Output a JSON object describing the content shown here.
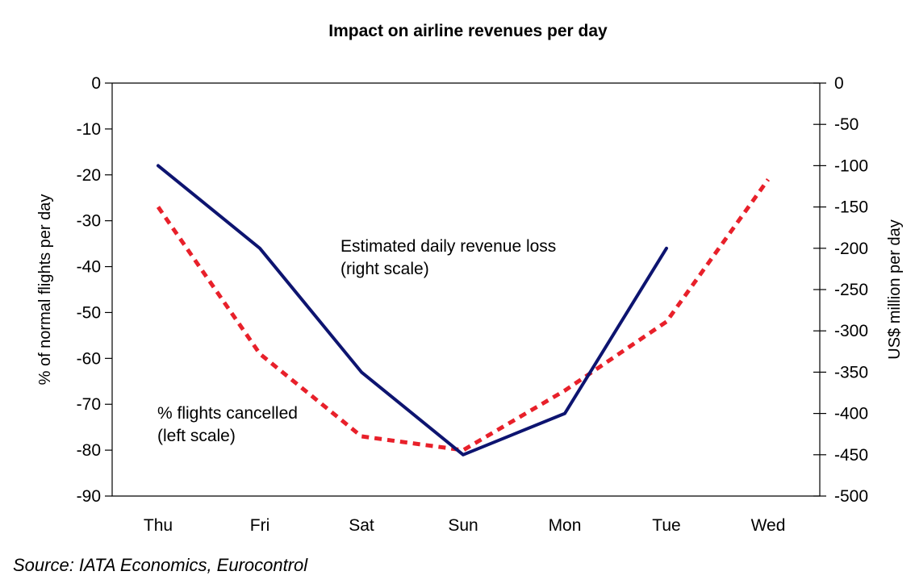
{
  "chart_data": {
    "type": "line",
    "title": "Impact on airline revenues per day",
    "categories": [
      "Thu",
      "Fri",
      "Sat",
      "Sun",
      "Mon",
      "Tue",
      "Wed"
    ],
    "y_left": {
      "label": "% of normal flights per day",
      "range": [
        -90,
        0
      ],
      "ticks": [
        0,
        -10,
        -20,
        -30,
        -40,
        -50,
        -60,
        -70,
        -80,
        -90
      ]
    },
    "y_right": {
      "label": "US$ million per day",
      "range": [
        -500,
        0
      ],
      "ticks": [
        0,
        -50,
        -100,
        -150,
        -200,
        -250,
        -300,
        -350,
        -400,
        -450,
        -500
      ]
    },
    "series": [
      {
        "axis": "left",
        "style": "dashed",
        "color": "#e8202a",
        "values": [
          -27,
          -59,
          -77,
          -80,
          -67,
          -52,
          -21
        ],
        "annotation": [
          "% flights cancelled",
          "(left scale)"
        ]
      },
      {
        "axis": "right",
        "style": "solid",
        "color": "#0d1470",
        "values": [
          -100,
          -200,
          -350,
          -450,
          -400,
          -200,
          null
        ],
        "annotation": [
          "Estimated daily revenue loss",
          "(right scale)"
        ]
      }
    ],
    "grid": false,
    "legend": "none"
  },
  "source": "Source: IATA Economics, Eurocontrol"
}
